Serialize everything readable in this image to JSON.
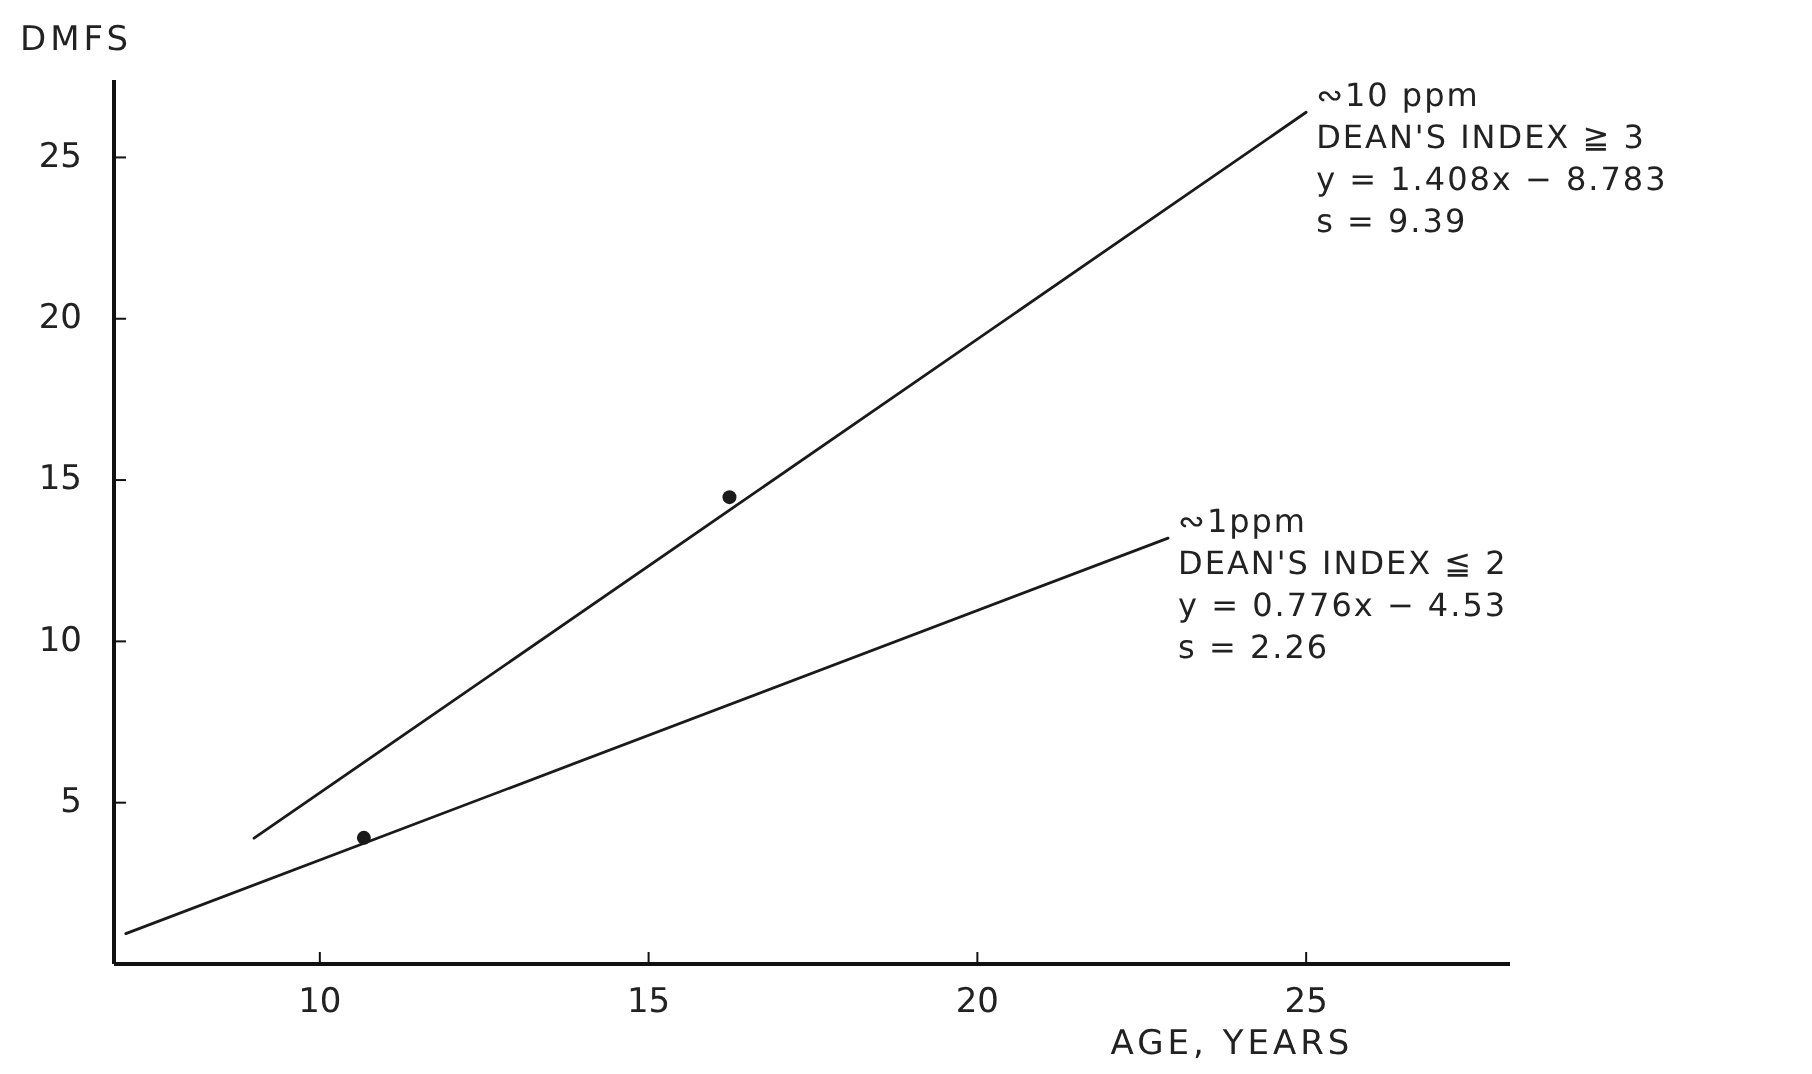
{
  "chart_data": {
    "type": "line",
    "xlabel": "AGE, YEARS",
    "ylabel": "DMFS",
    "xlim": [
      6.87,
      28.1
    ],
    "ylim": [
      0,
      27.4
    ],
    "xticks": [
      10,
      15,
      20,
      25
    ],
    "yticks": [
      5,
      10,
      15,
      20,
      25
    ],
    "grid": false,
    "marker": "none",
    "line_style": "solid",
    "series": [
      {
        "color": "#1a1a1a",
        "x": [
          7.05,
          22.9
        ],
        "values": [
          0.94,
          13.2
        ]
      },
      {
        "color": "#1a1a1a",
        "x": [
          9.0,
          25.0
        ],
        "values": [
          3.9,
          26.4
        ]
      },
      {
        "type": "scatter",
        "color": "#1a1a1a",
        "marker": "circle",
        "x": [
          10.67,
          16.23
        ],
        "values": [
          3.91,
          14.47
        ]
      }
    ],
    "annotations": [
      {
        "text": "∾10 ppm\nDEAN'S INDEX ≧ 3\ny = 1.408x − 8.783\ns = 9.39",
        "x": 25.0,
        "y": 26.4
      },
      {
        "text": "∾1ppm\nDEAN'S INDEX ≦ 2\ny = 0.776x − 4.53\ns = 2.26",
        "x": 22.9,
        "y": 13.2
      }
    ]
  }
}
